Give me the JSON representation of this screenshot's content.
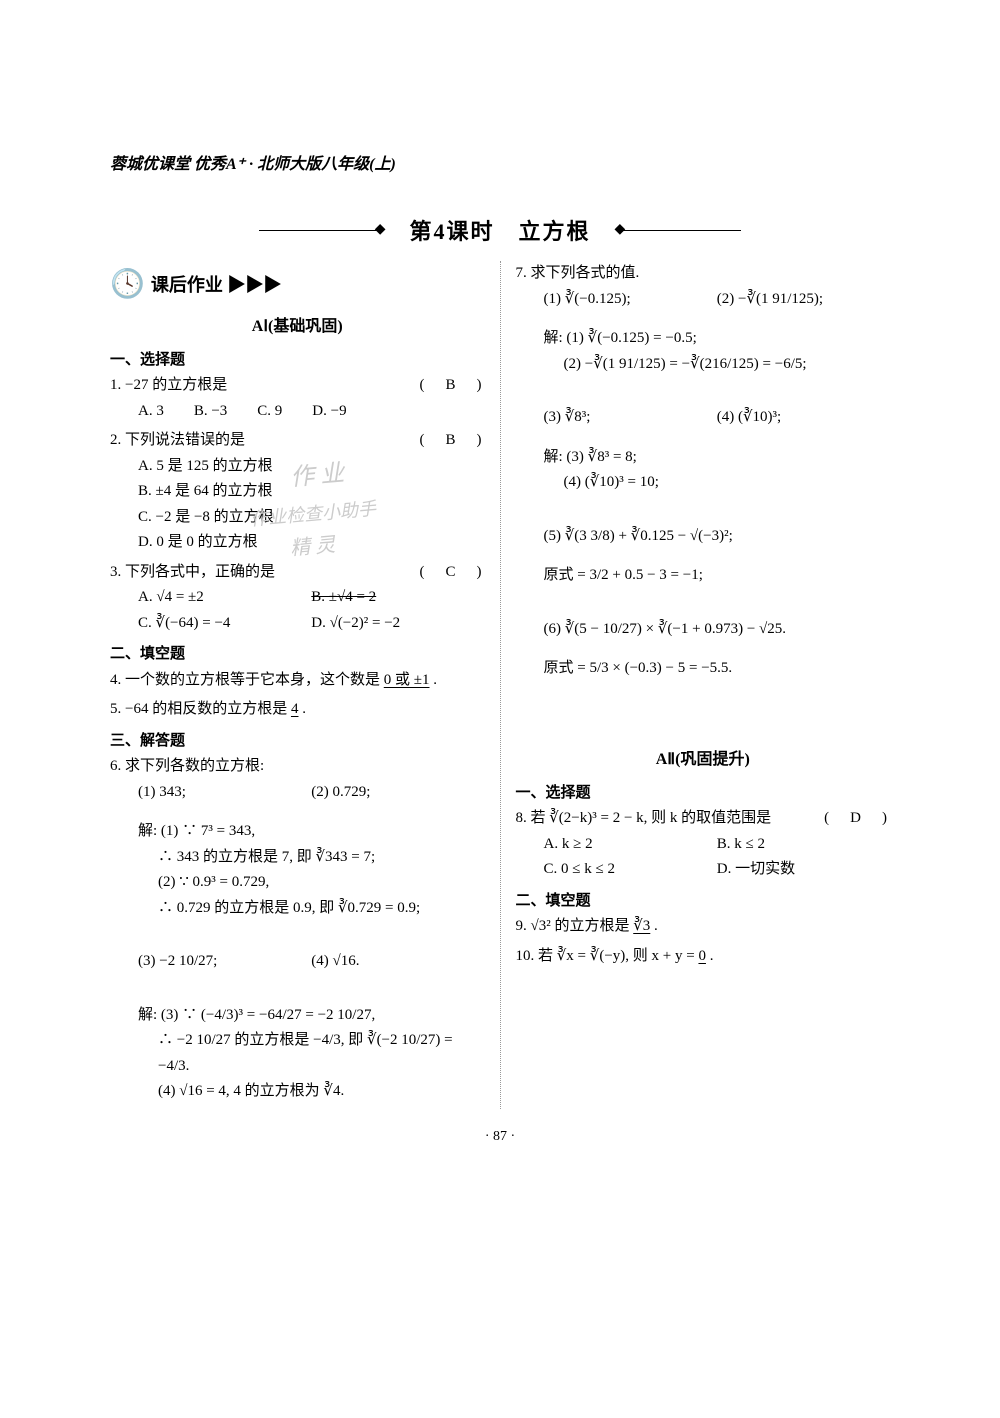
{
  "book_header": "蓉城优课堂 优秀A⁺ · 北师大版八年级(上)",
  "lesson_title": "第4课时　立方根",
  "homework_label": "课后作业 ▶▶▶",
  "level_a1": "AⅠ(基础巩固)",
  "level_a2": "AⅡ(巩固提升)",
  "headings": {
    "choice": "一、选择题",
    "blank": "二、填空题",
    "solve": "三、解答题"
  },
  "left": {
    "q1": {
      "stem": "1. −27 的立方根是",
      "ans": "(　B　)",
      "opts": "A. 3　　B. −3　　C. 9　　D. −9"
    },
    "q2": {
      "stem": "2. 下列说法错误的是",
      "ans": "(　B　)",
      "a": "A. 5 是 125 的立方根",
      "b": "B. ±4 是 64 的立方根",
      "c": "C. −2 是 −8 的立方根",
      "d": "D. 0 是 0 的立方根"
    },
    "q3": {
      "stem": "3. 下列各式中，正确的是",
      "ans": "(　C　)",
      "a": "A. √4 = ±2",
      "b": "B. ±√4 = 2",
      "c": "C. ∛(−64) = −4",
      "d": "D. √(−2)² = −2"
    },
    "q4": {
      "stem": "4. 一个数的立方根等于它本身，这个数是",
      "ans": "0 或 ±1",
      "tail": "."
    },
    "q5": {
      "stem": "5. −64 的相反数的立方根是",
      "ans": "4",
      "tail": "."
    },
    "q6": {
      "stem": "6. 求下列各数的立方根:",
      "p1": "(1) 343;",
      "p2": "(2) 0.729;",
      "s1a": "解: (1) ∵ 7³ = 343,",
      "s1b": "∴ 343 的立方根是 7, 即 ∛343 = 7;",
      "s2a": "(2) ∵ 0.9³ = 0.729,",
      "s2b": "∴ 0.729 的立方根是 0.9, 即 ∛0.729 = 0.9;",
      "p3": "(3) −2 10/27;",
      "p4": "(4) √16.",
      "s3a": "解: (3) ∵ (−4/3)³ = −64/27 = −2 10/27,",
      "s3b": "∴ −2 10/27 的立方根是 −4/3, 即 ∛(−2 10/27) = −4/3.",
      "s4": "(4) √16 = 4, 4 的立方根为 ∛4."
    }
  },
  "right": {
    "q7": {
      "stem": "7. 求下列各式的值.",
      "p1": "(1) ∛(−0.125);",
      "p2": "(2) −∛(1 91/125);",
      "s1": "解: (1) ∛(−0.125) = −0.5;",
      "s2": "(2) −∛(1 91/125) = −∛(216/125) = −6/5;",
      "p3": "(3) ∛8³;",
      "p4": "(4) (∛10)³;",
      "s3": "解: (3) ∛8³ = 8;",
      "s4": "(4) (∛10)³ = 10;",
      "p5": "(5) ∛(3 3/8) + ∛0.125 − √(−3)²;",
      "s5": "原式 = 3/2 + 0.5 − 3 = −1;",
      "p6": "(6) ∛(5 − 10/27) × ∛(−1 + 0.973) − √25.",
      "s6": "原式 = 5/3 × (−0.3) − 5 = −5.5."
    },
    "q8": {
      "stem": "8. 若 ∛(2−k)³ = 2 − k, 则 k 的取值范围是",
      "ans": "(　D　)",
      "a": "A. k ≥ 2",
      "b": "B. k ≤ 2",
      "c": "C. 0 ≤ k ≤ 2",
      "d": "D. 一切实数"
    },
    "q9": {
      "stem": "9. √3² 的立方根是",
      "ans": "∛3",
      "tail": "."
    },
    "q10": {
      "stem": "10. 若 ∛x = ∛(−y), 则 x + y =",
      "ans": "0",
      "tail": "."
    }
  },
  "page_number": "· 87 ·",
  "watermarks": {
    "w1": "作 业",
    "w2": "作业检查小助手",
    "w3": "精 灵"
  }
}
